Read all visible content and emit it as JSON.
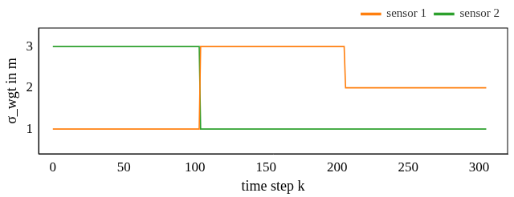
{
  "chart_data": {
    "type": "line",
    "x_label": "time step k",
    "y_label": "σ_wgt in m",
    "x": [
      0,
      103,
      104,
      205,
      206,
      305
    ],
    "series": [
      {
        "name": "sensor 1",
        "color": "#ff7f0e",
        "values": [
          1,
          1,
          3,
          3,
          2,
          2
        ]
      },
      {
        "name": "sensor 2",
        "color": "#2ca02c",
        "values": [
          3,
          3,
          1,
          1,
          1,
          1
        ]
      }
    ],
    "xlim": [
      -10,
      320
    ],
    "xticks": [
      0,
      50,
      100,
      150,
      200,
      250,
      300
    ],
    "ylim": [
      0.4,
      3.45
    ],
    "yticks": [
      1,
      2,
      3
    ],
    "grid": false,
    "legend": "upper right"
  }
}
